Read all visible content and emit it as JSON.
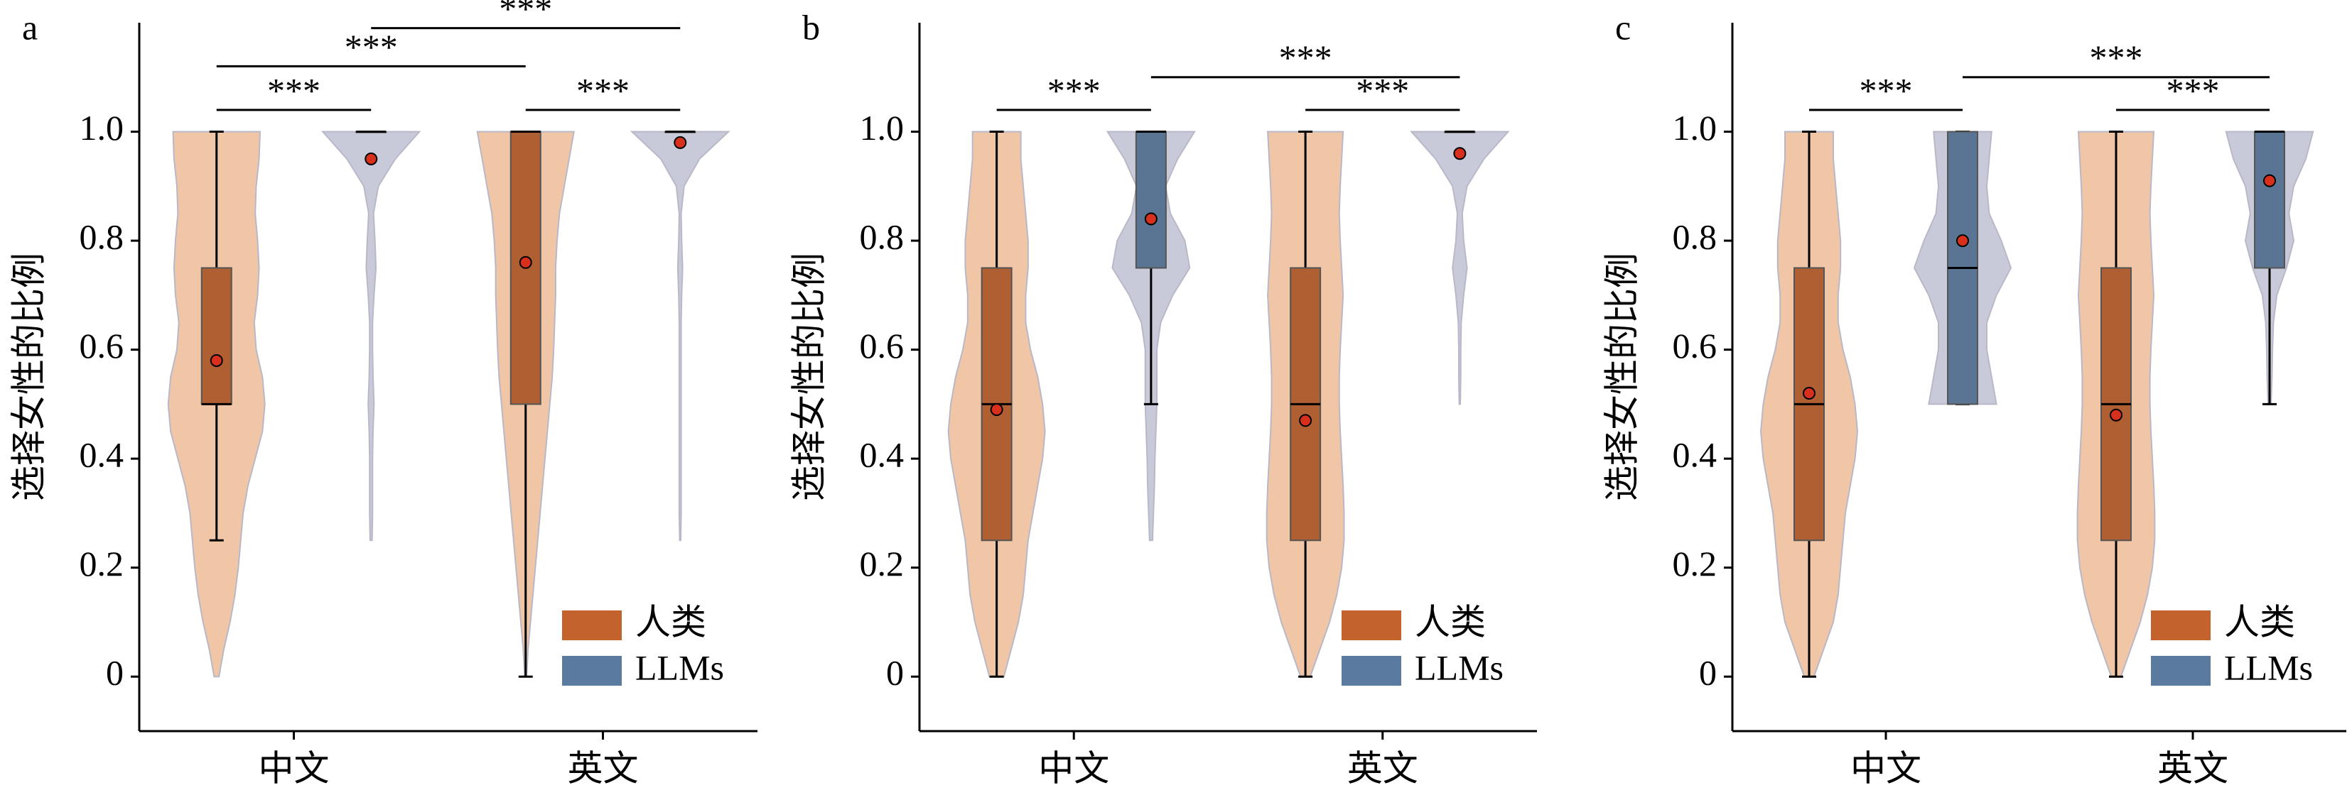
{
  "chart_data": [
    {
      "type": "violin-box",
      "label": "a",
      "ylabel": "选择女性的比例",
      "categories": [
        "中文",
        "英文"
      ],
      "ylim": [
        -0.1,
        1.2
      ],
      "yticks": [
        0,
        0.2,
        0.4,
        0.6,
        0.8,
        {
          "value": 1,
          "label": "1.0"
        }
      ],
      "legend": "lower right",
      "density_y": [
        0,
        0.05,
        0.1,
        0.15,
        0.2,
        0.25,
        0.3,
        0.35,
        0.4,
        0.45,
        0.5,
        0.55,
        0.6,
        0.65,
        0.7,
        0.75,
        0.8,
        0.85,
        0.9,
        0.95,
        1
      ],
      "series": [
        {
          "name": "人类",
          "color": "#c4622d",
          "box_color": "#b05f32",
          "violin_color": "#f0c6a6",
          "boxes": [
            {
              "min": 0.25,
              "q1": 0.5,
              "median": 0.5,
              "q3": 0.75,
              "max": 1,
              "mean": 0.58
            },
            {
              "min": 0,
              "q1": 0.5,
              "median": 1,
              "q3": 1,
              "max": 1,
              "mean": 0.76
            }
          ],
          "density": [
            [
              0.05,
              0.15,
              0.28,
              0.38,
              0.45,
              0.5,
              0.55,
              0.65,
              0.8,
              0.95,
              1.0,
              0.95,
              0.82,
              0.78,
              0.85,
              0.88,
              0.85,
              0.8,
              0.82,
              0.88,
              0.9
            ],
            [
              0.02,
              0.05,
              0.1,
              0.15,
              0.2,
              0.25,
              0.3,
              0.35,
              0.4,
              0.45,
              0.5,
              0.55,
              0.58,
              0.6,
              0.62,
              0.62,
              0.65,
              0.7,
              0.8,
              0.9,
              1.0
            ]
          ]
        },
        {
          "name": "LLMs",
          "color": "#5b7aa0",
          "box_color": "#5a7493",
          "violin_color": "#c8cad9",
          "boxes": [
            {
              "min": 1,
              "q1": 1,
              "median": 1,
              "q3": 1,
              "max": 1,
              "mean": 0.95
            },
            {
              "min": 1,
              "q1": 1,
              "median": 1,
              "q3": 1,
              "max": 1,
              "mean": 0.98
            }
          ],
          "density": [
            [
              null,
              null,
              null,
              null,
              null,
              0.02,
              0.03,
              0.03,
              0.03,
              0.04,
              0.06,
              0.04,
              0.03,
              0.03,
              0.06,
              0.1,
              0.08,
              0.05,
              0.15,
              0.5,
              1.0
            ],
            [
              null,
              null,
              null,
              null,
              null,
              0.01,
              0.02,
              0.02,
              0.02,
              0.02,
              0.02,
              0.02,
              0.02,
              0.02,
              0.03,
              0.05,
              0.03,
              0.02,
              0.08,
              0.4,
              1.0
            ]
          ]
        }
      ],
      "brackets": [
        {
          "from": [
            0,
            0
          ],
          "to": [
            0,
            1
          ],
          "y": 1.04,
          "label": "***"
        },
        {
          "from": [
            1,
            0
          ],
          "to": [
            1,
            1
          ],
          "y": 1.04,
          "label": "***"
        },
        {
          "from": [
            0,
            0
          ],
          "to": [
            1,
            0
          ],
          "y": 1.12,
          "label": "***"
        },
        {
          "from": [
            0,
            1
          ],
          "to": [
            1,
            1
          ],
          "y": 1.19,
          "label": "***"
        }
      ]
    },
    {
      "type": "violin-box",
      "label": "b",
      "ylabel": "选择女性的比例",
      "categories": [
        "中文",
        "英文"
      ],
      "ylim": [
        -0.1,
        1.2
      ],
      "yticks": [
        0,
        0.2,
        0.4,
        0.6,
        0.8,
        {
          "value": 1,
          "label": "1.0"
        }
      ],
      "legend": "lower right",
      "density_y": [
        0,
        0.05,
        0.1,
        0.15,
        0.2,
        0.25,
        0.3,
        0.35,
        0.4,
        0.45,
        0.5,
        0.55,
        0.6,
        0.65,
        0.7,
        0.75,
        0.8,
        0.85,
        0.9,
        0.95,
        1
      ],
      "series": [
        {
          "name": "人类",
          "color": "#c4622d",
          "box_color": "#b05f32",
          "violin_color": "#f0c6a6",
          "boxes": [
            {
              "min": 0,
              "q1": 0.25,
              "median": 0.5,
              "q3": 0.75,
              "max": 1,
              "mean": 0.49
            },
            {
              "min": 0,
              "q1": 0.25,
              "median": 0.5,
              "q3": 0.75,
              "max": 1,
              "mean": 0.47
            }
          ],
          "density": [
            [
              0.15,
              0.3,
              0.45,
              0.55,
              0.6,
              0.65,
              0.75,
              0.85,
              0.95,
              1.0,
              0.95,
              0.85,
              0.7,
              0.6,
              0.6,
              0.65,
              0.65,
              0.6,
              0.55,
              0.5,
              0.5
            ],
            [
              0.1,
              0.3,
              0.5,
              0.65,
              0.75,
              0.8,
              0.8,
              0.78,
              0.75,
              0.72,
              0.7,
              0.7,
              0.72,
              0.75,
              0.78,
              0.75,
              0.72,
              0.7,
              0.72,
              0.75,
              0.78
            ]
          ]
        },
        {
          "name": "LLMs",
          "color": "#5b7aa0",
          "box_color": "#5a7493",
          "violin_color": "#c8cad9",
          "boxes": [
            {
              "min": 0.5,
              "q1": 0.75,
              "median": 1,
              "q3": 1,
              "max": 1,
              "mean": 0.84
            },
            {
              "min": 1,
              "q1": 1,
              "median": 1,
              "q3": 1,
              "max": 1,
              "mean": 0.96
            }
          ],
          "density": [
            [
              null,
              null,
              null,
              null,
              null,
              0.03,
              0.05,
              0.07,
              0.08,
              0.1,
              0.12,
              0.12,
              0.12,
              0.2,
              0.45,
              0.8,
              0.7,
              0.4,
              0.3,
              0.55,
              0.9
            ],
            [
              null,
              null,
              null,
              null,
              null,
              null,
              null,
              null,
              null,
              null,
              0.01,
              0.02,
              0.02,
              0.03,
              0.08,
              0.15,
              0.08,
              0.05,
              0.15,
              0.5,
              1.0
            ]
          ]
        }
      ],
      "brackets": [
        {
          "from": [
            0,
            0
          ],
          "to": [
            0,
            1
          ],
          "y": 1.04,
          "label": "***"
        },
        {
          "from": [
            1,
            0
          ],
          "to": [
            1,
            1
          ],
          "y": 1.04,
          "label": "***"
        },
        {
          "from": [
            0,
            1
          ],
          "to": [
            1,
            1
          ],
          "y": 1.1,
          "label": "***"
        }
      ]
    },
    {
      "type": "violin-box",
      "label": "c",
      "ylabel": "选择女性的比例",
      "categories": [
        "中文",
        "英文"
      ],
      "ylim": [
        -0.1,
        1.2
      ],
      "yticks": [
        0,
        0.2,
        0.4,
        0.6,
        0.8,
        {
          "value": 1,
          "label": "1.0"
        }
      ],
      "legend": "lower right",
      "density_y": [
        0,
        0.05,
        0.1,
        0.15,
        0.2,
        0.25,
        0.3,
        0.35,
        0.4,
        0.45,
        0.5,
        0.55,
        0.6,
        0.65,
        0.7,
        0.75,
        0.8,
        0.85,
        0.9,
        0.95,
        1
      ],
      "series": [
        {
          "name": "人类",
          "color": "#c4622d",
          "box_color": "#b05f32",
          "violin_color": "#f0c6a6",
          "boxes": [
            {
              "min": 0,
              "q1": 0.25,
              "median": 0.5,
              "q3": 0.75,
              "max": 1,
              "mean": 0.52
            },
            {
              "min": 0,
              "q1": 0.25,
              "median": 0.5,
              "q3": 0.75,
              "max": 1,
              "mean": 0.48
            }
          ],
          "density": [
            [
              0.1,
              0.3,
              0.5,
              0.6,
              0.65,
              0.7,
              0.75,
              0.85,
              0.95,
              1.0,
              0.95,
              0.85,
              0.7,
              0.6,
              0.6,
              0.65,
              0.65,
              0.6,
              0.55,
              0.5,
              0.5
            ],
            [
              0.1,
              0.3,
              0.5,
              0.65,
              0.75,
              0.8,
              0.8,
              0.78,
              0.75,
              0.72,
              0.7,
              0.7,
              0.72,
              0.75,
              0.78,
              0.75,
              0.72,
              0.7,
              0.72,
              0.75,
              0.78
            ]
          ]
        },
        {
          "name": "LLMs",
          "color": "#5b7aa0",
          "box_color": "#5a7493",
          "violin_color": "#c8cad9",
          "boxes": [
            {
              "min": 0.5,
              "q1": 0.5,
              "median": 0.75,
              "q3": 1,
              "max": 1,
              "mean": 0.8
            },
            {
              "min": 0.5,
              "q1": 0.75,
              "median": 1,
              "q3": 1,
              "max": 1,
              "mean": 0.91
            }
          ],
          "density": [
            [
              null,
              null,
              null,
              null,
              null,
              null,
              null,
              null,
              null,
              null,
              0.7,
              0.6,
              0.5,
              0.5,
              0.7,
              1.0,
              0.8,
              0.55,
              0.5,
              0.55,
              0.6
            ],
            [
              null,
              null,
              null,
              null,
              null,
              null,
              null,
              null,
              null,
              null,
              0.03,
              0.05,
              0.06,
              0.08,
              0.15,
              0.35,
              0.5,
              0.4,
              0.5,
              0.75,
              0.9
            ]
          ]
        }
      ],
      "brackets": [
        {
          "from": [
            0,
            0
          ],
          "to": [
            0,
            1
          ],
          "y": 1.04,
          "label": "***"
        },
        {
          "from": [
            1,
            0
          ],
          "to": [
            1,
            1
          ],
          "y": 1.04,
          "label": "***"
        },
        {
          "from": [
            0,
            1
          ],
          "to": [
            1,
            1
          ],
          "y": 1.1,
          "label": "***"
        }
      ]
    }
  ]
}
